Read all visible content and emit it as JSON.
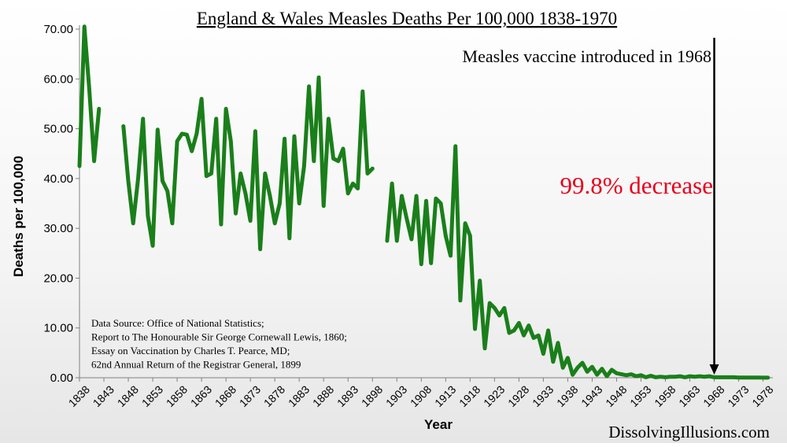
{
  "chart_data": {
    "type": "line",
    "title": "England & Wales Measles Deaths Per 100,000 1838-1970",
    "xlabel": "Year",
    "ylabel": "Deaths per 100,000",
    "ylim": [
      0,
      70
    ],
    "xlim": [
      1838,
      1980
    ],
    "y_ticks": [
      "0.00",
      "10.00",
      "20.00",
      "30.00",
      "40.00",
      "50.00",
      "60.00",
      "70.00"
    ],
    "x_ticks": [
      "1838",
      "1843",
      "1848",
      "1853",
      "1858",
      "1863",
      "1868",
      "1873",
      "1878",
      "1883",
      "1888",
      "1893",
      "1898",
      "1903",
      "1908",
      "1913",
      "1918",
      "1923",
      "1928",
      "1933",
      "1938",
      "1943",
      "1948",
      "1953",
      "1958",
      "1963",
      "1968",
      "1973",
      "1978"
    ],
    "grid": false,
    "line_color": "#1a7f1a",
    "series": [
      {
        "segments": [
          [
            [
              1838,
              42.5
            ],
            [
              1839,
              70.5
            ],
            [
              1840,
              58.0
            ],
            [
              1841,
              43.5
            ],
            [
              1842,
              54.0
            ]
          ],
          [
            [
              1847,
              50.5
            ],
            [
              1848,
              39.5
            ],
            [
              1849,
              31.0
            ],
            [
              1850,
              40.0
            ],
            [
              1851,
              52.0
            ],
            [
              1852,
              32.5
            ],
            [
              1853,
              26.5
            ],
            [
              1854,
              49.8
            ],
            [
              1855,
              39.5
            ],
            [
              1856,
              37.5
            ],
            [
              1857,
              31.0
            ],
            [
              1858,
              47.5
            ],
            [
              1859,
              49.0
            ],
            [
              1860,
              48.8
            ],
            [
              1861,
              45.5
            ],
            [
              1862,
              49.0
            ],
            [
              1863,
              56.0
            ],
            [
              1864,
              40.5
            ],
            [
              1865,
              41.0
            ],
            [
              1866,
              52.0
            ],
            [
              1867,
              30.8
            ],
            [
              1868,
              54.0
            ],
            [
              1869,
              47.5
            ],
            [
              1870,
              33.0
            ],
            [
              1871,
              41.0
            ],
            [
              1872,
              37.0
            ],
            [
              1873,
              31.5
            ],
            [
              1874,
              49.5
            ],
            [
              1875,
              25.8
            ],
            [
              1876,
              41.0
            ],
            [
              1877,
              36.5
            ],
            [
              1878,
              31.0
            ],
            [
              1879,
              35.0
            ],
            [
              1880,
              48.0
            ],
            [
              1881,
              28.0
            ],
            [
              1882,
              48.5
            ],
            [
              1883,
              35.0
            ],
            [
              1884,
              42.5
            ],
            [
              1885,
              58.5
            ],
            [
              1886,
              43.5
            ],
            [
              1887,
              60.3
            ],
            [
              1888,
              34.5
            ],
            [
              1889,
              52.0
            ],
            [
              1890,
              44.0
            ],
            [
              1891,
              43.5
            ],
            [
              1892,
              46.0
            ],
            [
              1893,
              37.0
            ],
            [
              1894,
              39.0
            ],
            [
              1895,
              38.0
            ],
            [
              1896,
              57.5
            ],
            [
              1897,
              41.0
            ],
            [
              1898,
              42.0
            ]
          ],
          [
            [
              1901,
              27.5
            ],
            [
              1902,
              39.0
            ],
            [
              1903,
              27.5
            ],
            [
              1904,
              36.5
            ],
            [
              1905,
              32.0
            ],
            [
              1906,
              27.8
            ],
            [
              1907,
              36.5
            ],
            [
              1908,
              22.8
            ],
            [
              1909,
              35.5
            ],
            [
              1910,
              23.0
            ],
            [
              1911,
              36.0
            ],
            [
              1912,
              35.0
            ],
            [
              1913,
              28.5
            ],
            [
              1914,
              24.5
            ],
            [
              1915,
              46.5
            ],
            [
              1916,
              15.5
            ],
            [
              1917,
              31.0
            ],
            [
              1918,
              28.5
            ],
            [
              1919,
              9.8
            ],
            [
              1920,
              19.5
            ],
            [
              1921,
              5.9
            ],
            [
              1922,
              15.0
            ],
            [
              1923,
              14.0
            ],
            [
              1924,
              12.5
            ],
            [
              1925,
              14.0
            ],
            [
              1926,
              9.0
            ],
            [
              1927,
              9.5
            ],
            [
              1928,
              11.0
            ],
            [
              1929,
              8.5
            ],
            [
              1930,
              10.5
            ],
            [
              1931,
              8.0
            ],
            [
              1932,
              8.5
            ],
            [
              1933,
              4.8
            ],
            [
              1934,
              9.5
            ],
            [
              1935,
              3.2
            ],
            [
              1936,
              7.0
            ],
            [
              1937,
              2.0
            ],
            [
              1938,
              4.0
            ],
            [
              1939,
              0.6
            ],
            [
              1940,
              2.0
            ],
            [
              1941,
              3.0
            ],
            [
              1942,
              1.2
            ],
            [
              1943,
              2.2
            ],
            [
              1944,
              0.6
            ],
            [
              1945,
              1.8
            ],
            [
              1946,
              0.3
            ],
            [
              1947,
              1.6
            ],
            [
              1948,
              0.9
            ],
            [
              1949,
              0.7
            ],
            [
              1950,
              0.5
            ],
            [
              1951,
              0.7
            ],
            [
              1952,
              0.3
            ],
            [
              1953,
              0.5
            ],
            [
              1954,
              0.1
            ],
            [
              1955,
              0.4
            ],
            [
              1956,
              0.1
            ],
            [
              1957,
              0.2
            ],
            [
              1958,
              0.1
            ],
            [
              1959,
              0.2
            ],
            [
              1960,
              0.2
            ],
            [
              1961,
              0.3
            ],
            [
              1962,
              0.1
            ],
            [
              1963,
              0.3
            ],
            [
              1964,
              0.2
            ],
            [
              1965,
              0.3
            ],
            [
              1966,
              0.2
            ],
            [
              1967,
              0.3
            ],
            [
              1968,
              0.1
            ],
            [
              1969,
              0.1
            ],
            [
              1970,
              0.1
            ],
            [
              1971,
              0.1
            ],
            [
              1972,
              0.1
            ],
            [
              1973,
              0.05
            ],
            [
              1974,
              0.05
            ],
            [
              1975,
              0.05
            ],
            [
              1976,
              0.05
            ],
            [
              1977,
              0.05
            ],
            [
              1978,
              0.02
            ],
            [
              1979,
              0.02
            ]
          ]
        ]
      }
    ],
    "annotations": {
      "vaccine_text": "Measles vaccine introduced in 1968",
      "vaccine_year": 1968,
      "decrease_text": "99.8% decrease",
      "decrease_color": "#e8001c",
      "source_lines": [
        "Data Source:  Office of National Statistics;",
        "Report to The Honourable Sir George Cornewall Lewis, 1860;",
        "Essay on Vaccination by Charles T. Pearce, MD;",
        "62nd Annual Return of the Registrar General, 1899"
      ],
      "watermark": "DissolvingIllusions.com"
    }
  }
}
